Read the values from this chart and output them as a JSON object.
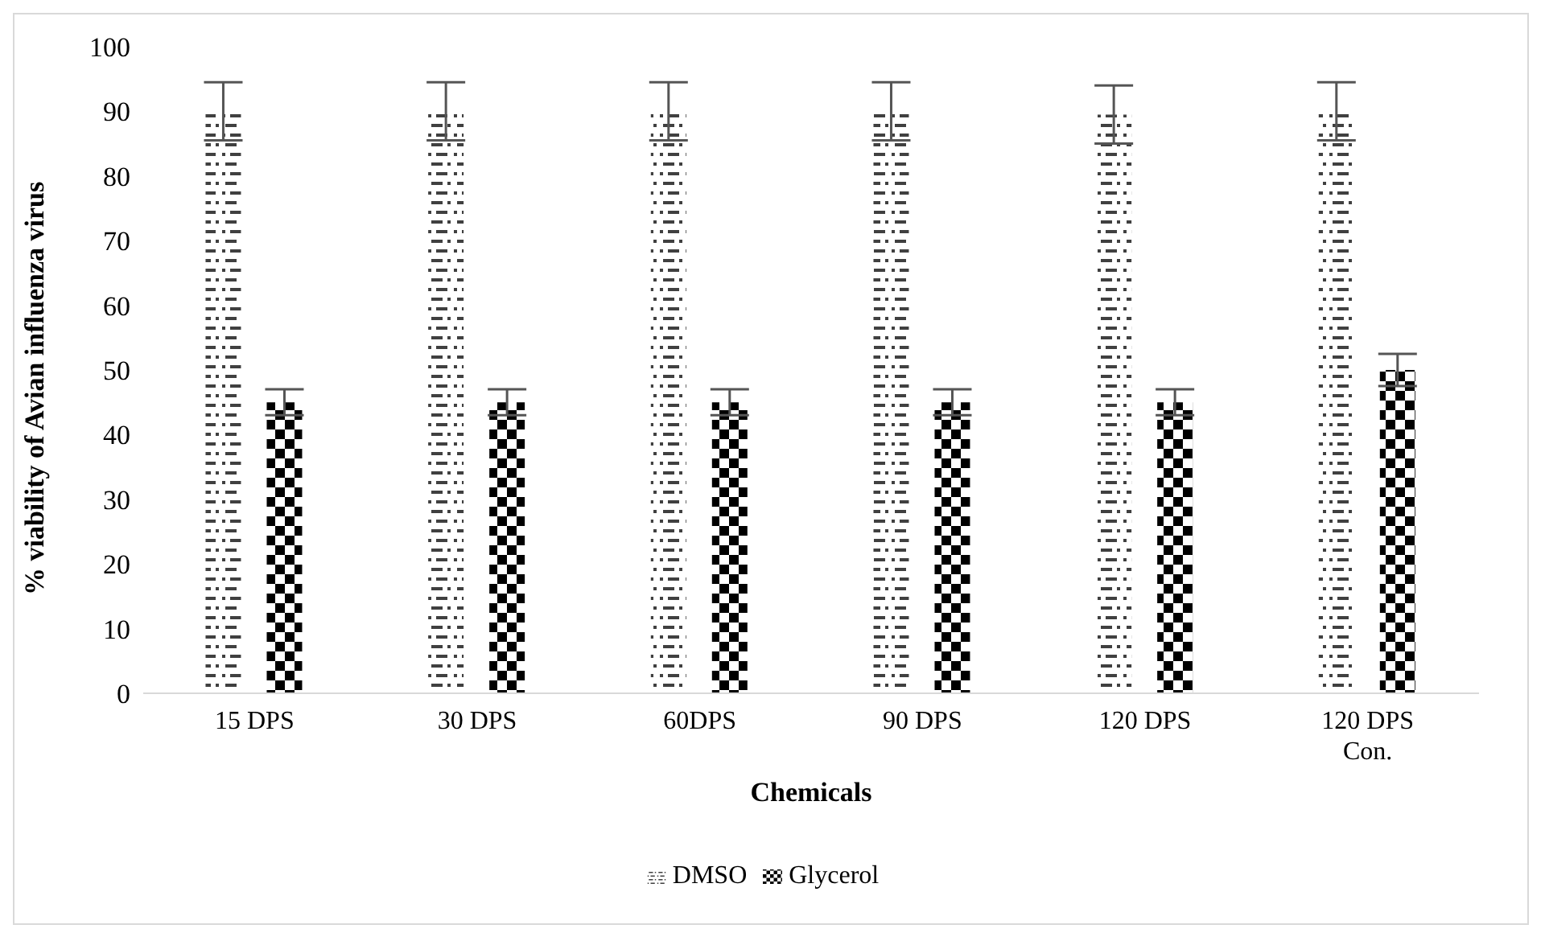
{
  "chart_data": {
    "type": "bar",
    "xlabel": "Chemicals",
    "ylabel": "% viability of Avian influenza virus",
    "categories": [
      "15 DPS",
      "30 DPS",
      "60DPS",
      "90 DPS",
      "120 DPS",
      "120 DPS Con."
    ],
    "series": [
      {
        "name": "DMSO",
        "color": "#404040",
        "values": [
          90,
          90,
          90,
          90,
          89.5,
          90
        ],
        "errors": [
          4.5,
          4.5,
          4.5,
          4.5,
          4.5,
          4.5
        ]
      },
      {
        "name": "Glycerol",
        "color": "#000000",
        "values": [
          45,
          45,
          45,
          45,
          45,
          50
        ],
        "errors": [
          2,
          2,
          2,
          2,
          2,
          2.5
        ]
      }
    ],
    "ylim": [
      0,
      100
    ],
    "yticks": [
      0,
      10,
      20,
      30,
      40,
      50,
      60,
      70,
      80,
      90,
      100
    ],
    "grid": false,
    "legend": "bottom"
  }
}
